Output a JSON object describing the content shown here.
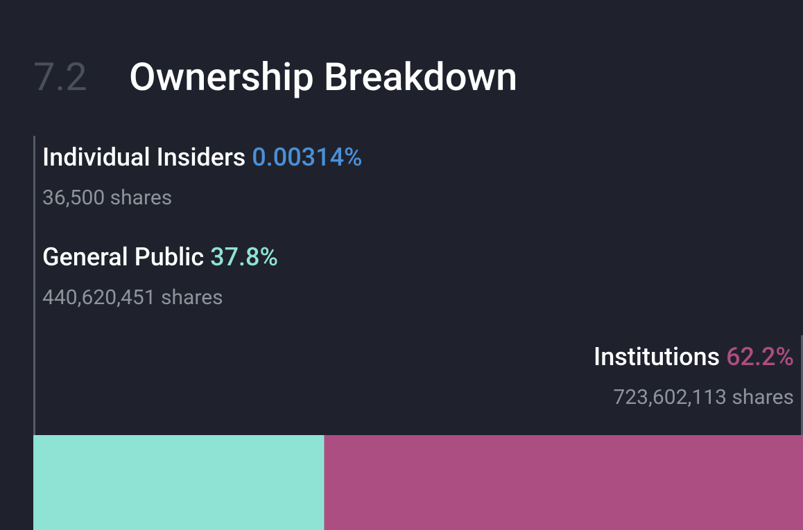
{
  "chart_data": {
    "type": "stacked-bar",
    "section_number": "7.2",
    "title": "Ownership Breakdown",
    "series": [
      {
        "name": "Individual Insiders",
        "value": 0.00314,
        "value_label": "0.00314%",
        "shares_label": "36,500 shares",
        "color": "#4a90d9"
      },
      {
        "name": "General Public",
        "value": 37.8,
        "value_label": "37.8%",
        "shares_label": "440,620,451 shares",
        "color": "#8fe3d5"
      },
      {
        "name": "Institutions",
        "value": 62.2,
        "value_label": "62.2%",
        "shares_label": "723,602,113 shares",
        "color": "#ac4e82"
      }
    ]
  }
}
